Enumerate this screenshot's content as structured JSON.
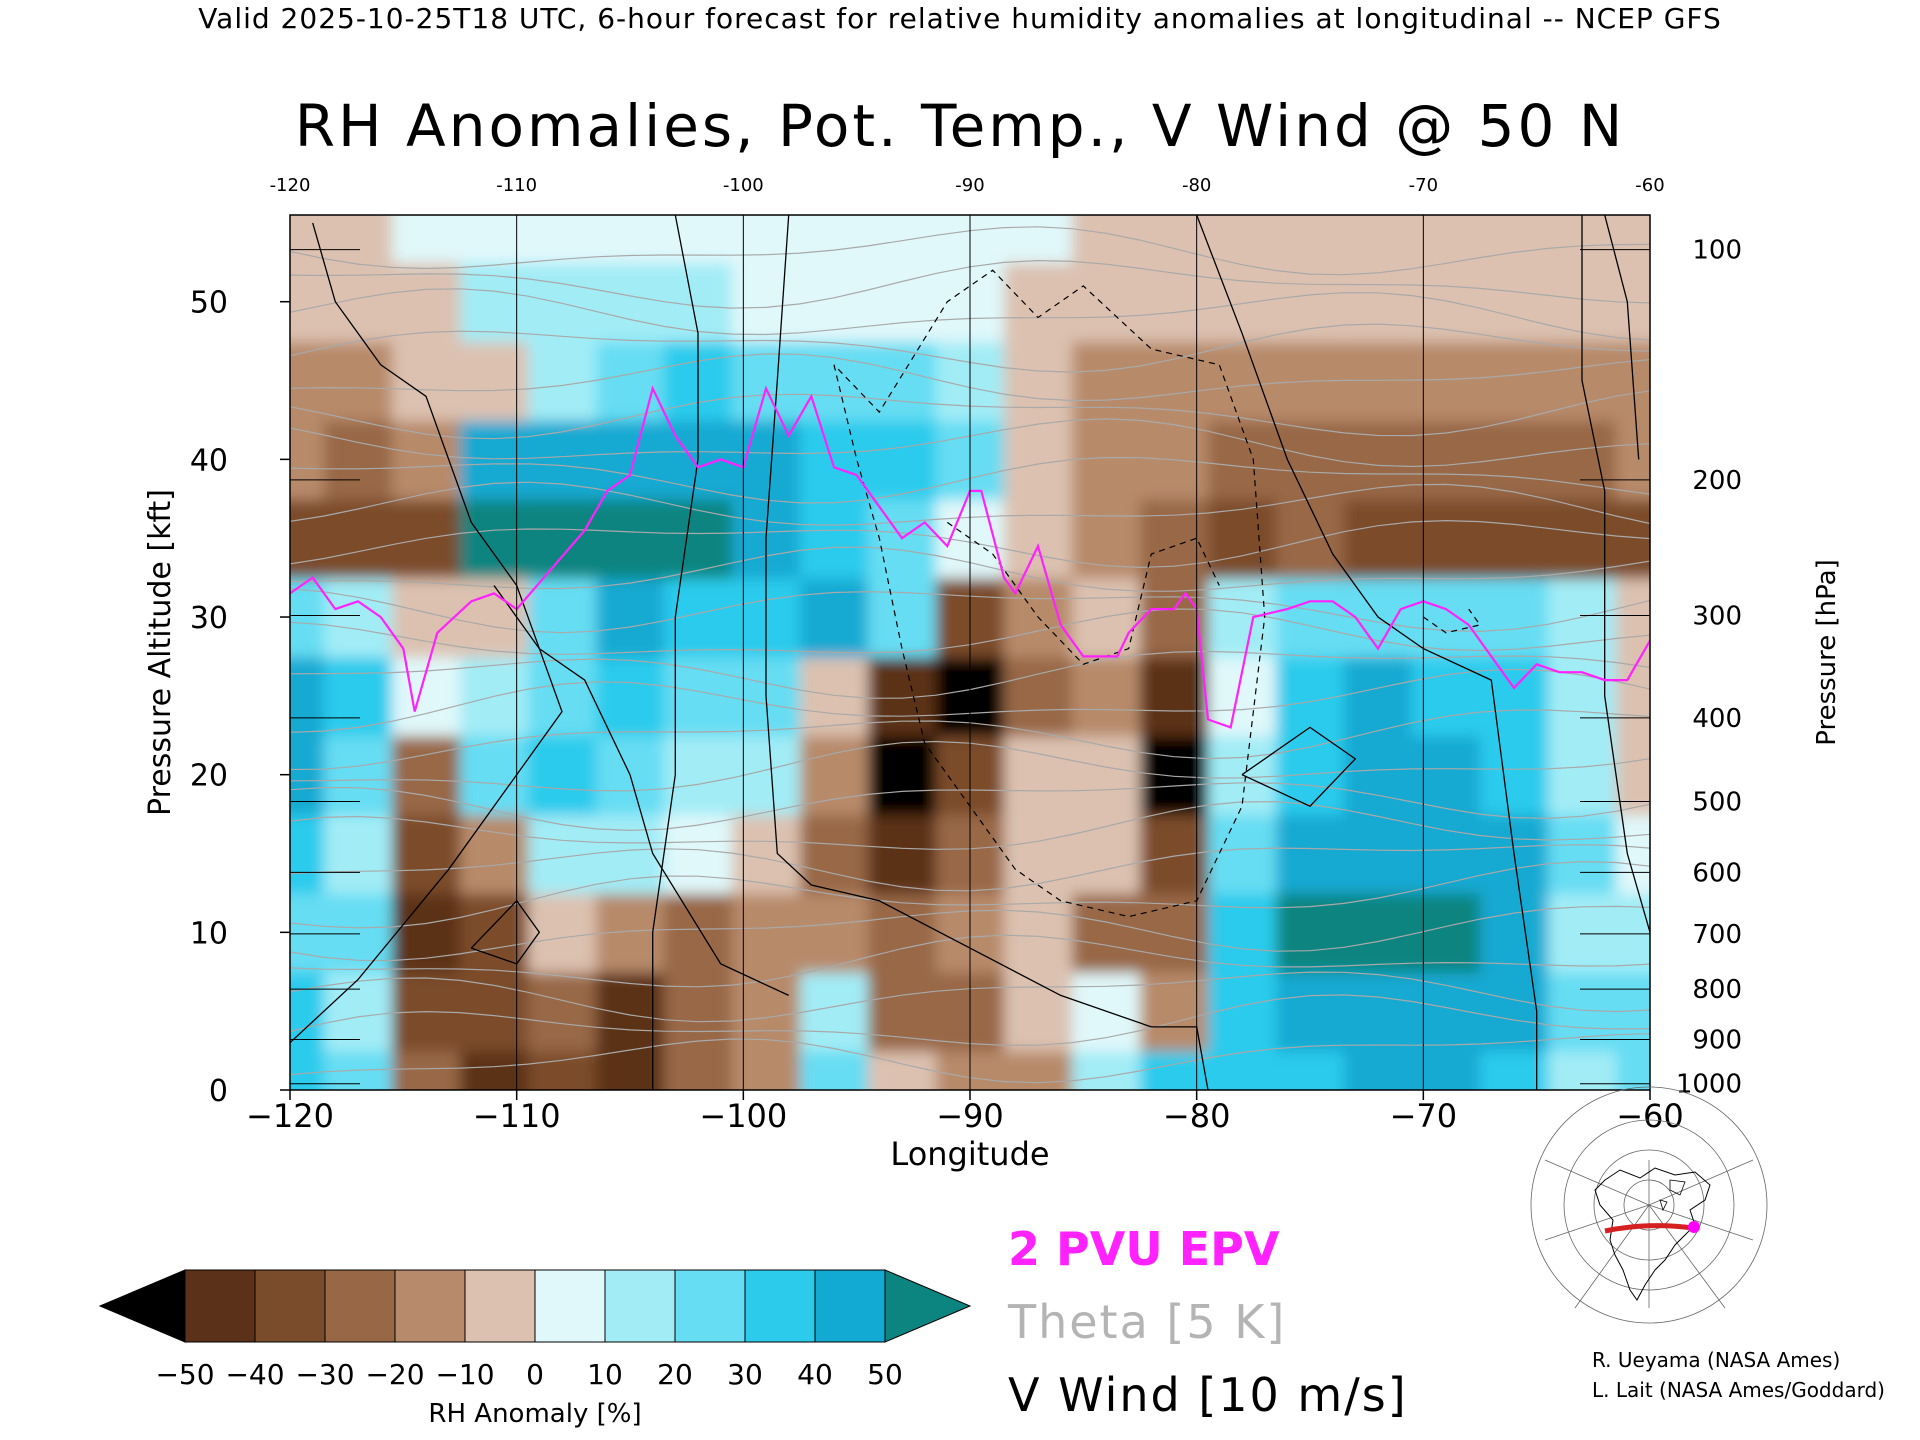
{
  "header": {
    "subtitle": "Valid 2025-10-25T18 UTC, 6-hour forecast for relative humidity anomalies at longitudinal -- NCEP GFS",
    "title": "RH Anomalies, Pot. Temp., V Wind @ 50 N"
  },
  "chart_data": {
    "type": "heatmap",
    "title": "RH Anomalies, Pot. Temp., V Wind @ 50 N",
    "xlabel": "Longitude",
    "ylabel": "Pressure Altitude [kft]",
    "y2label": "Pressure [hPa]",
    "xlim": [
      -120,
      -60
    ],
    "ylim": [
      0,
      55.5
    ],
    "x_ticks": [
      -120,
      -110,
      -100,
      -90,
      -80,
      -70,
      -60
    ],
    "x_tick_labels": [
      "−120",
      "−110",
      "−100",
      "−90",
      "−80",
      "−70",
      "−60"
    ],
    "top_tick_labels": [
      "-120",
      "-110",
      "-100",
      "-90",
      "-80",
      "-70",
      "-60"
    ],
    "y_ticks": [
      0,
      10,
      20,
      30,
      40,
      50
    ],
    "pressure_ticks": [
      {
        "label": "100",
        "kft": 53.3
      },
      {
        "label": "200",
        "kft": 38.7
      },
      {
        "label": "300",
        "kft": 30.1
      },
      {
        "label": "400",
        "kft": 23.6
      },
      {
        "label": "500",
        "kft": 18.3
      },
      {
        "label": "600",
        "kft": 13.8
      },
      {
        "label": "700",
        "kft": 9.9
      },
      {
        "label": "800",
        "kft": 6.4
      },
      {
        "label": "900",
        "kft": 3.2
      },
      {
        "label": "1000",
        "kft": 0.4
      }
    ],
    "x_gridlines": [
      -120,
      -110,
      -100,
      -90,
      -80,
      -70,
      -60
    ],
    "legend": {
      "pvu_label": "2 PVU EPV",
      "theta_label": "Theta [5 K]",
      "vwind_label": "V Wind [10 m/s]",
      "pvu_color": "#ff22ff",
      "theta_color": "#b4b4b4",
      "vwind_color": "#000000"
    },
    "colorbar": {
      "label": "RH Anomaly [%]",
      "tick_labels": [
        "−50",
        "−40",
        "−30",
        "−20",
        "−10",
        "0",
        "10",
        "20",
        "30",
        "40",
        "50"
      ],
      "bins": [
        "#411f0a",
        "#5b3219",
        "#7b4c2c",
        "#986746",
        "#b78a6b",
        "#dcc1b0",
        "#e0f8fa",
        "#a2ecf6",
        "#66ddf3",
        "#2ccbec",
        "#12a9d2",
        "#067b97"
      ],
      "under_color": "#000000",
      "over_color": "#0c8480"
    },
    "rh_anomaly_field": {
      "x": [
        -120,
        -117,
        -114,
        -111,
        -108,
        -105,
        -102,
        -99,
        -96,
        -93,
        -90,
        -87,
        -84,
        -81,
        -78,
        -75,
        -72,
        -69,
        -66,
        -63,
        -60
      ],
      "z_kft": [
        0,
        5,
        10,
        15,
        20,
        25,
        30,
        35,
        40,
        45,
        50,
        55
      ],
      "values": [
        [
          35,
          20,
          -28,
          -45,
          -40,
          -42,
          -28,
          -18,
          20,
          -10,
          -20,
          -15,
          10,
          30,
          32,
          38,
          40,
          40,
          30,
          15,
          25
        ],
        [
          30,
          10,
          -40,
          -35,
          -25,
          -42,
          -28,
          -15,
          15,
          -25,
          -22,
          -10,
          5,
          -20,
          35,
          40,
          42,
          42,
          40,
          20,
          20
        ],
        [
          25,
          25,
          -45,
          -40,
          -10,
          -20,
          -30,
          -20,
          -20,
          -30,
          -15,
          -5,
          -30,
          -25,
          35,
          55,
          55,
          55,
          50,
          15,
          10
        ],
        [
          35,
          15,
          -35,
          -20,
          15,
          10,
          0,
          -5,
          -25,
          -45,
          -28,
          -8,
          -10,
          -35,
          20,
          45,
          50,
          48,
          45,
          20,
          5
        ],
        [
          42,
          25,
          -25,
          20,
          30,
          25,
          10,
          15,
          -20,
          -55,
          -40,
          -10,
          -10,
          -55,
          10,
          35,
          40,
          40,
          35,
          15,
          -5
        ],
        [
          40,
          30,
          5,
          10,
          25,
          30,
          25,
          25,
          -5,
          -45,
          -55,
          -25,
          -15,
          -45,
          5,
          35,
          40,
          38,
          30,
          15,
          -5
        ],
        [
          20,
          10,
          -5,
          -10,
          20,
          40,
          30,
          35,
          40,
          20,
          -40,
          -15,
          -5,
          -30,
          10,
          20,
          25,
          25,
          20,
          10,
          -10
        ],
        [
          -35,
          -38,
          -38,
          55,
          60,
          60,
          60,
          50,
          35,
          25,
          5,
          -10,
          -20,
          -30,
          -35,
          -30,
          -35,
          -35,
          -40,
          -40,
          -38
        ],
        [
          -20,
          -25,
          -15,
          40,
          50,
          45,
          40,
          45,
          35,
          30,
          25,
          -10,
          -15,
          -20,
          -25,
          -25,
          -25,
          -25,
          -25,
          -25,
          -20
        ],
        [
          -20,
          -20,
          -10,
          -5,
          15,
          20,
          30,
          20,
          25,
          20,
          10,
          -10,
          -20,
          -20,
          -20,
          -20,
          -20,
          -20,
          -20,
          -20,
          -15
        ],
        [
          -10,
          -10,
          -5,
          10,
          10,
          15,
          10,
          5,
          5,
          5,
          0,
          -5,
          -10,
          -10,
          -10,
          -10,
          -10,
          -10,
          -10,
          -10,
          -10
        ],
        [
          -5,
          -5,
          0,
          0,
          5,
          5,
          5,
          5,
          0,
          0,
          0,
          0,
          -5,
          -5,
          -5,
          -5,
          -5,
          -5,
          -5,
          -5,
          -5
        ]
      ]
    },
    "epv_2pvu_line": {
      "x": [
        -120,
        -119,
        -118,
        -117,
        -116,
        -115,
        -114.5,
        -113.5,
        -112,
        -111,
        -110,
        -108.5,
        -107,
        -106,
        -105,
        -104,
        -103,
        -102,
        -101,
        -100,
        -99,
        -98,
        -97,
        -96,
        -95,
        -94,
        -93,
        -92,
        -91,
        -90,
        -89.5,
        -88.5,
        -88,
        -87,
        -86,
        -85,
        -84,
        -83.5,
        -83,
        -82,
        -81,
        -80.5,
        -80,
        -79.5,
        -78.5,
        -77.5,
        -76,
        -75,
        -74,
        -73,
        -72,
        -71,
        -70,
        -69,
        -68,
        -67,
        -66,
        -65,
        -64,
        -63,
        -62,
        -61,
        -60
      ],
      "z": [
        31.5,
        32.5,
        30.5,
        31,
        30,
        28,
        24,
        29,
        31,
        31.5,
        30.5,
        33,
        35.5,
        38,
        39,
        44.5,
        41.5,
        39.5,
        40,
        39.5,
        44.5,
        41.5,
        44,
        39.5,
        39,
        37,
        35,
        36,
        34.5,
        38,
        38,
        32.5,
        31.5,
        34.5,
        29.5,
        27.5,
        27.5,
        27.5,
        29,
        30.5,
        30.5,
        31.5,
        30.5,
        23.5,
        23,
        30,
        30.5,
        31,
        31,
        30,
        28,
        30.5,
        31,
        30.5,
        29.5,
        27.5,
        25.5,
        27,
        26.5,
        26.5,
        26,
        26,
        28.5
      ]
    }
  },
  "colorbar_label": "RH Anomaly [%]",
  "credits": [
    "R. Ueyama (NASA Ames)",
    "L. Lait (NASA Ames/Goddard)"
  ]
}
